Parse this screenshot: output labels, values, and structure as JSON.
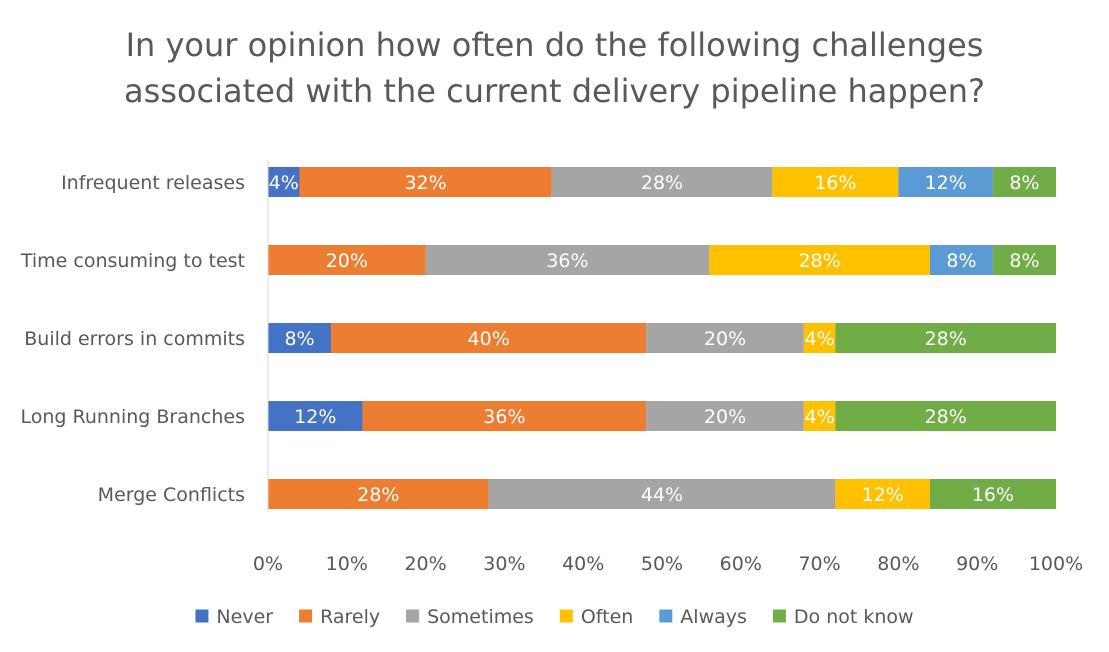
{
  "chart_data": {
    "type": "bar",
    "orientation": "horizontal",
    "stacked": "percent",
    "title_lines": [
      "In your opinion how often do the following challenges",
      "associated with the current delivery pipeline happen?"
    ],
    "categories": [
      "Infrequent releases",
      "Time consuming to test",
      "Build errors in commits",
      "Long Running Branches",
      "Merge Conflicts"
    ],
    "series": [
      {
        "name": "Never",
        "color": "#4472C4",
        "values": [
          4,
          0,
          8,
          12,
          0
        ]
      },
      {
        "name": "Rarely",
        "color": "#ED7D31",
        "values": [
          32,
          20,
          40,
          36,
          28
        ]
      },
      {
        "name": "Sometimes",
        "color": "#A5A5A5",
        "values": [
          28,
          36,
          20,
          20,
          44
        ]
      },
      {
        "name": "Often",
        "color": "#FFC000",
        "values": [
          16,
          28,
          4,
          4,
          12
        ]
      },
      {
        "name": "Always",
        "color": "#5B9BD5",
        "values": [
          12,
          8,
          0,
          0,
          0
        ]
      },
      {
        "name": "Do not know",
        "color": "#70AD47",
        "values": [
          8,
          8,
          28,
          28,
          16
        ]
      }
    ],
    "x_ticks": [
      "0%",
      "10%",
      "20%",
      "30%",
      "40%",
      "50%",
      "60%",
      "70%",
      "80%",
      "90%",
      "100%"
    ],
    "xlim": [
      0,
      100
    ],
    "value_suffix": "%",
    "legend_position": "bottom",
    "grid": false
  }
}
